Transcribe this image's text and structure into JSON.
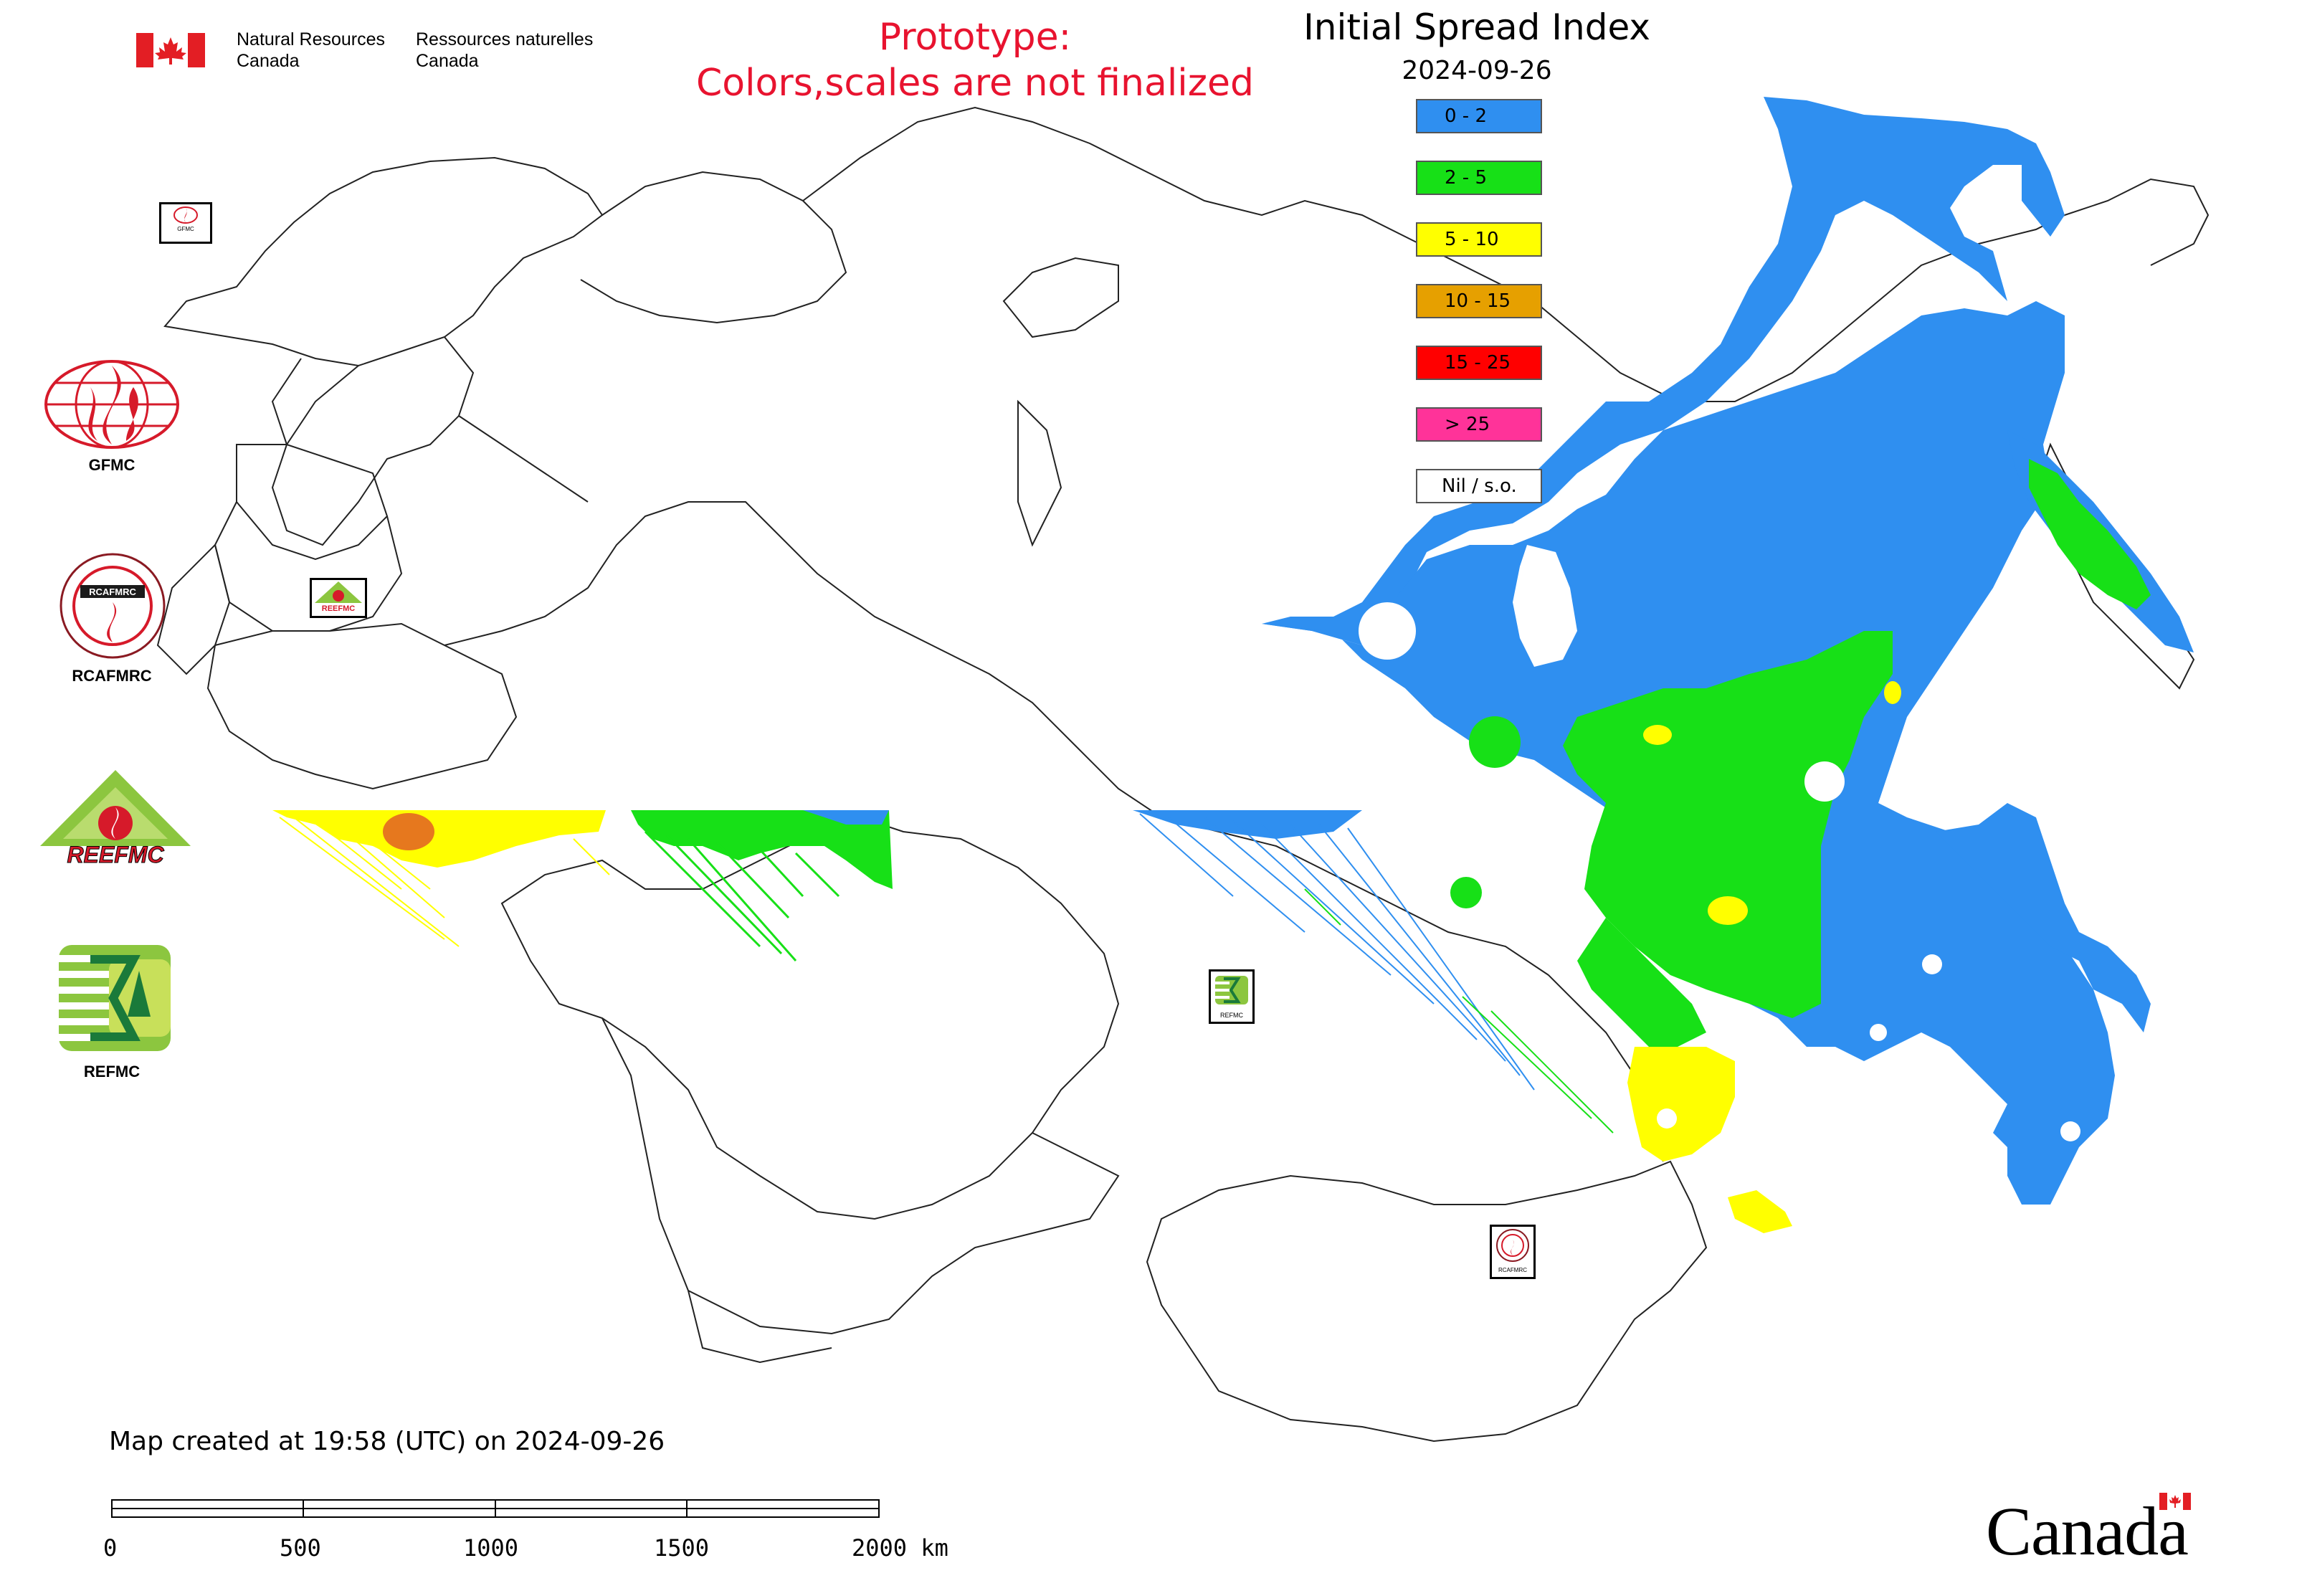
{
  "header": {
    "agency_en_1": "Natural Resources",
    "agency_en_2": "Canada",
    "agency_fr_1": "Ressources naturelles",
    "agency_fr_2": "Canada",
    "prototype_line1": "Prototype:",
    "prototype_line2": "Colors,scales are not finalized",
    "title": "Initial Spread Index",
    "date": "2024-09-26"
  },
  "legend": [
    {
      "label": "0 - 2",
      "color": "#2f8ff0"
    },
    {
      "label": "2 - 5",
      "color": "#17e017"
    },
    {
      "label": "5 - 10",
      "color": "#ffff00"
    },
    {
      "label": "10 - 15",
      "color": "#e6a000"
    },
    {
      "label": "15 - 25",
      "color": "#ff0000"
    },
    {
      "label": "> 25",
      "color": "#ff3399"
    },
    {
      "label": "Nil / s.o.",
      "color": "#ffffff"
    }
  ],
  "logos": {
    "gfmc": "GFMC",
    "rcafmrc": "RCAFMRC",
    "reefmc": "REEFMC",
    "refmc": "REFMC",
    "rcafmrc_text": "RCAFMRC",
    "reefmc_text": "REEFMC",
    "small_gfmc": "GFMC",
    "small_reefmc": "REEFMC",
    "small_refmc": "REFMC",
    "small_rcafmrc": "RCAFMRC"
  },
  "footer": {
    "created": "Map created at 19:58 (UTC) on 2024-09-26",
    "scale_ticks": [
      "0",
      "500",
      "1000",
      "1500",
      "2000 km"
    ],
    "wordmark": "Canada"
  }
}
